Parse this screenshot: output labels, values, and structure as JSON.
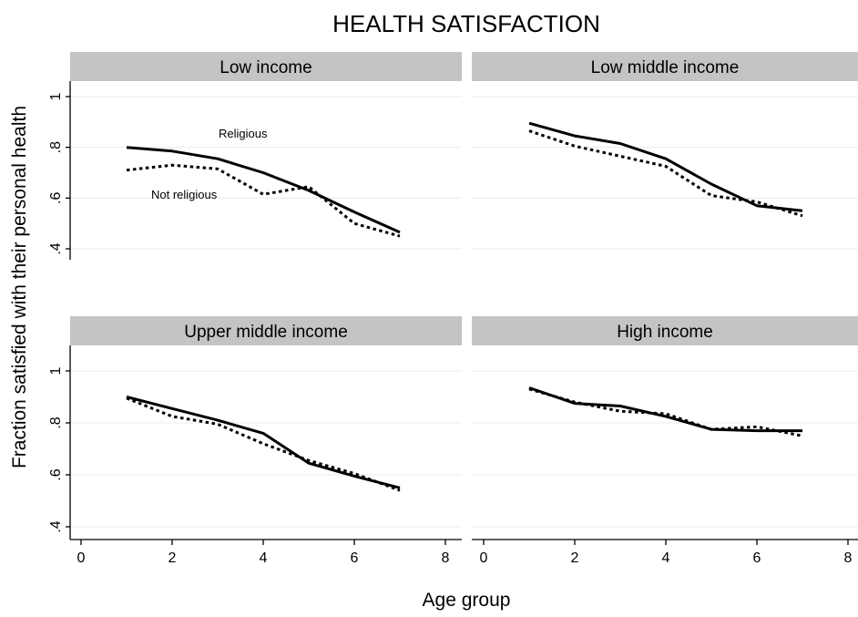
{
  "chart_data": {
    "type": "line",
    "title": "HEALTH SATISFACTION",
    "xlabel": "Age group",
    "ylabel": "Fraction satisfied with their personal health",
    "xlim": [
      0,
      8
    ],
    "ylim": [
      0.4,
      1
    ],
    "xticks": [
      0,
      2,
      4,
      6,
      8
    ],
    "xtick_labels": [
      "0",
      "2",
      "4",
      "6",
      "8"
    ],
    "yticks": [
      0.4,
      0.6,
      0.8,
      1
    ],
    "ytick_labels": [
      ".4",
      ".6",
      ".8",
      "1"
    ],
    "grid": true,
    "annotations": [
      "Religious",
      "Not religious"
    ],
    "panels": [
      {
        "label": "Low income",
        "series": [
          {
            "style": "solid",
            "x": [
              1,
              2,
              3,
              4,
              5,
              6,
              7
            ],
            "values": [
              0.8,
              0.785,
              0.755,
              0.7,
              0.63,
              0.545,
              0.465
            ]
          },
          {
            "style": "dotted",
            "x": [
              1,
              2,
              3,
              4,
              5,
              6,
              7
            ],
            "values": [
              0.71,
              0.73,
              0.715,
              0.615,
              0.645,
              0.5,
              0.45
            ]
          }
        ]
      },
      {
        "label": "Low middle income",
        "series": [
          {
            "style": "solid",
            "x": [
              1,
              2,
              3,
              4,
              5,
              6,
              7
            ],
            "values": [
              0.895,
              0.845,
              0.815,
              0.755,
              0.655,
              0.57,
              0.55
            ]
          },
          {
            "style": "dotted",
            "x": [
              1,
              2,
              3,
              4,
              5,
              6,
              7
            ],
            "values": [
              0.865,
              0.805,
              0.765,
              0.725,
              0.61,
              0.585,
              0.53
            ]
          }
        ]
      },
      {
        "label": "Upper middle income",
        "series": [
          {
            "style": "solid",
            "x": [
              1,
              2,
              3,
              4,
              5,
              6,
              7
            ],
            "values": [
              0.9,
              0.855,
              0.81,
              0.76,
              0.645,
              0.595,
              0.55
            ]
          },
          {
            "style": "dotted",
            "x": [
              1,
              2,
              3,
              4,
              5,
              6,
              7
            ],
            "values": [
              0.895,
              0.825,
              0.795,
              0.72,
              0.655,
              0.605,
              0.54
            ]
          }
        ]
      },
      {
        "label": "High income",
        "series": [
          {
            "style": "solid",
            "x": [
              1,
              2,
              3,
              4,
              5,
              6,
              7
            ],
            "values": [
              0.935,
              0.875,
              0.865,
              0.825,
              0.775,
              0.77,
              0.77
            ]
          },
          {
            "style": "dotted",
            "x": [
              1,
              2,
              3,
              4,
              5,
              6,
              7
            ],
            "values": [
              0.93,
              0.88,
              0.845,
              0.835,
              0.775,
              0.785,
              0.75
            ]
          }
        ]
      }
    ]
  }
}
